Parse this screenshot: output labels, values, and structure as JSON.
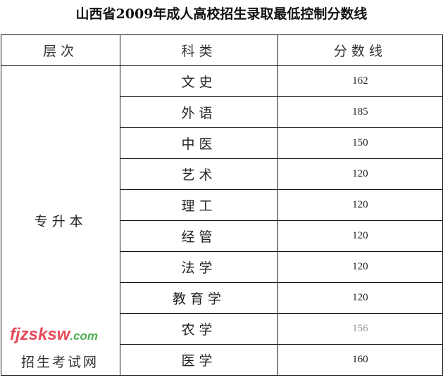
{
  "title": "山西省2009年成人高校招生录取最低控制分数线",
  "headers": [
    "层次",
    "科类",
    "分数线"
  ],
  "level": "专升本",
  "rows": [
    {
      "category": "文史",
      "score": "162"
    },
    {
      "category": "外语",
      "score": "185"
    },
    {
      "category": "中医",
      "score": "150"
    },
    {
      "category": "艺术",
      "score": "120"
    },
    {
      "category": "理工",
      "score": "120"
    },
    {
      "category": "经管",
      "score": "120"
    },
    {
      "category": "法学",
      "score": "120"
    },
    {
      "category": "教育学",
      "score": "120"
    },
    {
      "category": "农学",
      "score": "156"
    },
    {
      "category": "医学",
      "score": "160"
    }
  ],
  "watermark": {
    "brand": "fjzsksw",
    "domain": ".com",
    "tagline": "招生考试网"
  }
}
